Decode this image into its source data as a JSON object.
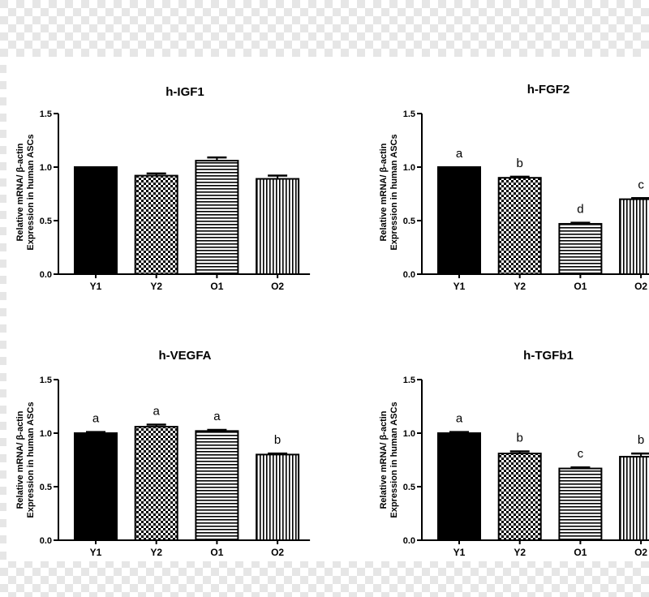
{
  "chart_data": [
    {
      "type": "bar",
      "title": "h-IGF1",
      "categories": [
        "Y1",
        "Y2",
        "O1",
        "O2"
      ],
      "values": [
        1.0,
        0.92,
        1.06,
        0.89
      ],
      "errors": [
        0.0,
        0.02,
        0.03,
        0.03
      ],
      "significance": [
        "",
        "",
        "",
        ""
      ],
      "patterns": [
        "solid",
        "checker",
        "hstripe",
        "vstripe"
      ],
      "ylabel_line1": "Relative mRNA/ β-actin",
      "ylabel_line2": "Expression in human ASCs",
      "ylim": [
        0,
        1.5
      ],
      "yticks": [
        "0.0",
        "0.5",
        "1.0",
        "1.5"
      ]
    },
    {
      "type": "bar",
      "title": "h-FGF2",
      "categories": [
        "Y1",
        "Y2",
        "O1",
        "O2"
      ],
      "values": [
        1.0,
        0.9,
        0.47,
        0.7
      ],
      "errors": [
        0.0,
        0.01,
        0.01,
        0.01
      ],
      "significance": [
        "a",
        "b",
        "d",
        "c"
      ],
      "patterns": [
        "solid",
        "checker",
        "hstripe",
        "vstripe"
      ],
      "ylabel_line1": "Relative mRNA/ β-actin",
      "ylabel_line2": "Expression in human ASCs",
      "ylim": [
        0,
        1.5
      ],
      "yticks": [
        "0.0",
        "0.5",
        "1.0",
        "1.5"
      ]
    },
    {
      "type": "bar",
      "title": "h-VEGFA",
      "categories": [
        "Y1",
        "Y2",
        "O1",
        "O2"
      ],
      "values": [
        1.0,
        1.06,
        1.02,
        0.8
      ],
      "errors": [
        0.01,
        0.02,
        0.01,
        0.01
      ],
      "significance": [
        "a",
        "a",
        "a",
        "b"
      ],
      "patterns": [
        "solid",
        "checker",
        "hstripe",
        "vstripe"
      ],
      "ylabel_line1": "Relative mRNA/ β-actin",
      "ylabel_line2": "Expression in human ASCs",
      "ylim": [
        0,
        1.5
      ],
      "yticks": [
        "0.0",
        "0.5",
        "1.0",
        "1.5"
      ]
    },
    {
      "type": "bar",
      "title": "h-TGFb1",
      "categories": [
        "Y1",
        "Y2",
        "O1",
        "O2"
      ],
      "values": [
        1.0,
        0.81,
        0.67,
        0.78
      ],
      "errors": [
        0.01,
        0.02,
        0.01,
        0.03
      ],
      "significance": [
        "a",
        "b",
        "c",
        "b"
      ],
      "patterns": [
        "solid",
        "checker",
        "hstripe",
        "vstripe"
      ],
      "ylabel_line1": "Relative mRNA/ β-actin",
      "ylabel_line2": "Expression in human ASCs",
      "ylim": [
        0,
        1.5
      ],
      "yticks": [
        "0.0",
        "0.5",
        "1.0",
        "1.5"
      ]
    }
  ]
}
